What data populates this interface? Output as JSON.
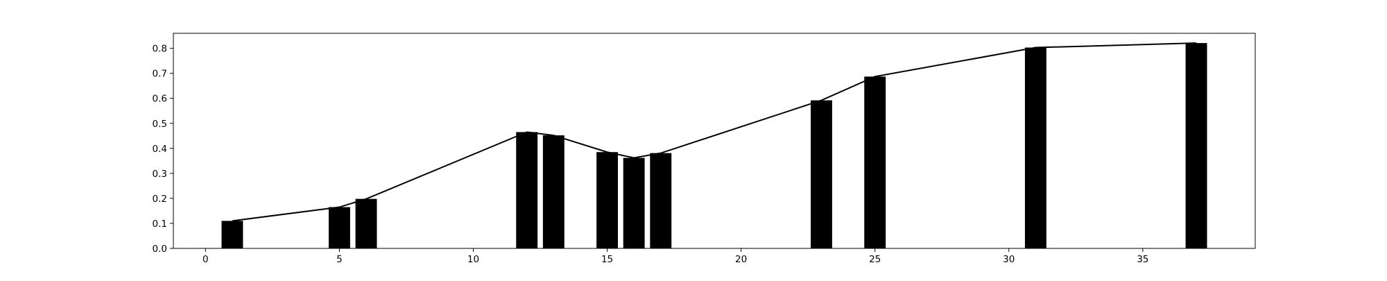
{
  "chart_data": {
    "type": "bar",
    "x": [
      1,
      5,
      6,
      12,
      13,
      15,
      16,
      17,
      23,
      25,
      31,
      37
    ],
    "values": [
      0.11,
      0.165,
      0.198,
      0.465,
      0.452,
      0.385,
      0.362,
      0.381,
      0.592,
      0.687,
      0.803,
      0.821
    ],
    "line_overlay": true,
    "xlim": [
      -1.2,
      39.2
    ],
    "ylim": [
      0,
      0.86
    ],
    "xticks": [
      0,
      5,
      10,
      15,
      20,
      25,
      30,
      35
    ],
    "yticks": [
      0.0,
      0.1,
      0.2,
      0.3,
      0.4,
      0.5,
      0.6,
      0.7,
      0.8
    ],
    "xtick_labels": [
      "0",
      "5",
      "10",
      "15",
      "20",
      "25",
      "30",
      "35"
    ],
    "ytick_labels": [
      "0.0",
      "0.1",
      "0.2",
      "0.3",
      "0.4",
      "0.5",
      "0.6",
      "0.7",
      "0.8"
    ],
    "title": "",
    "xlabel": "",
    "ylabel": "",
    "grid": false,
    "bar_color": "#000000",
    "line_color": "#000000"
  }
}
